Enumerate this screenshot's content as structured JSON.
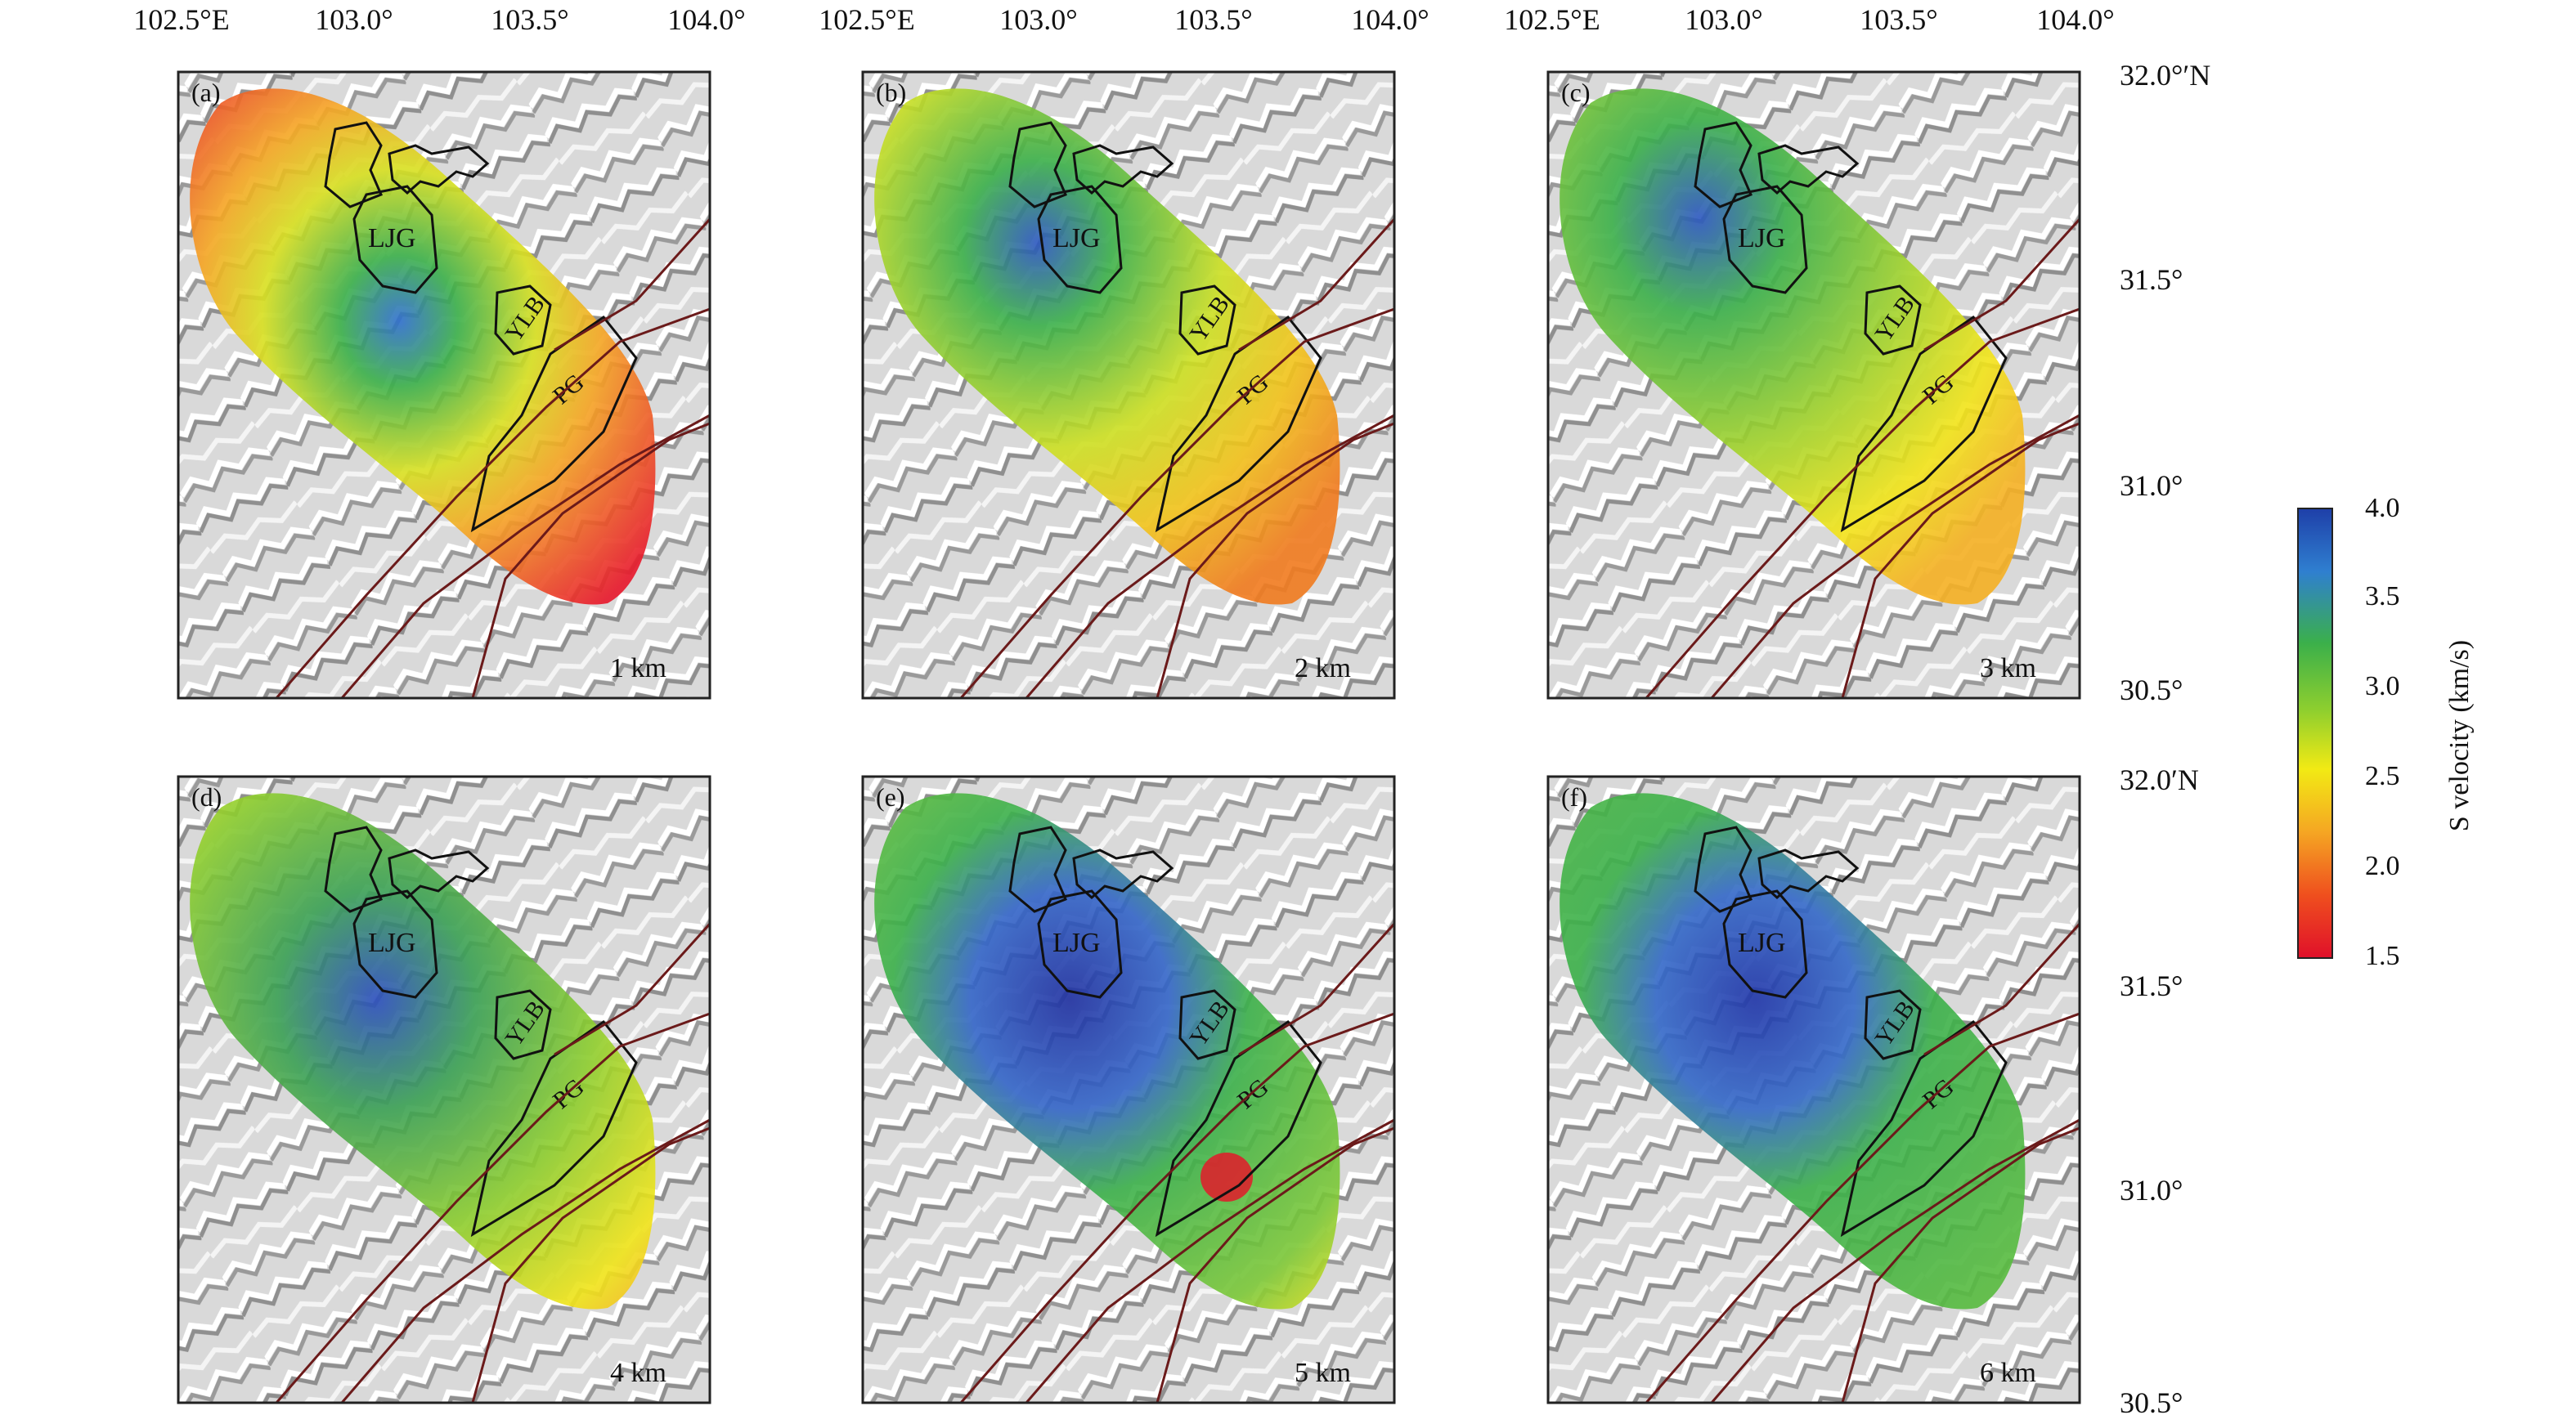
{
  "figure": {
    "top_lon_labels": [
      "102.5°E",
      "103.0°",
      "103.5°",
      "104.0°"
    ],
    "right_lat_labels_top": [
      "32.0°′N",
      "31.5°",
      "31.0°",
      "30.5°"
    ],
    "right_lat_labels_bottom": [
      "32.0′N",
      "31.5°",
      "31.0°",
      "30.5°"
    ]
  },
  "panels": [
    {
      "id": "a",
      "label": "(a)",
      "depth": "1 km"
    },
    {
      "id": "b",
      "label": "(b)",
      "depth": "2 km"
    },
    {
      "id": "c",
      "label": "(c)",
      "depth": "3 km"
    },
    {
      "id": "d",
      "label": "(d)",
      "depth": "4 km"
    },
    {
      "id": "e",
      "label": "(e)",
      "depth": "5 km"
    },
    {
      "id": "f",
      "label": "(f)",
      "depth": "6 km"
    }
  ],
  "regions": {
    "ljg": "LJG",
    "ylb": "YLB",
    "pg": "PG"
  },
  "colorbar": {
    "title": "S velocity (km/s)",
    "ticks": [
      "4.0",
      "3.5",
      "3.0",
      "2.5",
      "2.0",
      "1.5"
    ],
    "colors": [
      "#1e3fa8",
      "#2f7fd0",
      "#3bb04a",
      "#8fcf2e",
      "#f2ea14",
      "#f5a623",
      "#ef4f1e",
      "#e0102a"
    ]
  }
}
